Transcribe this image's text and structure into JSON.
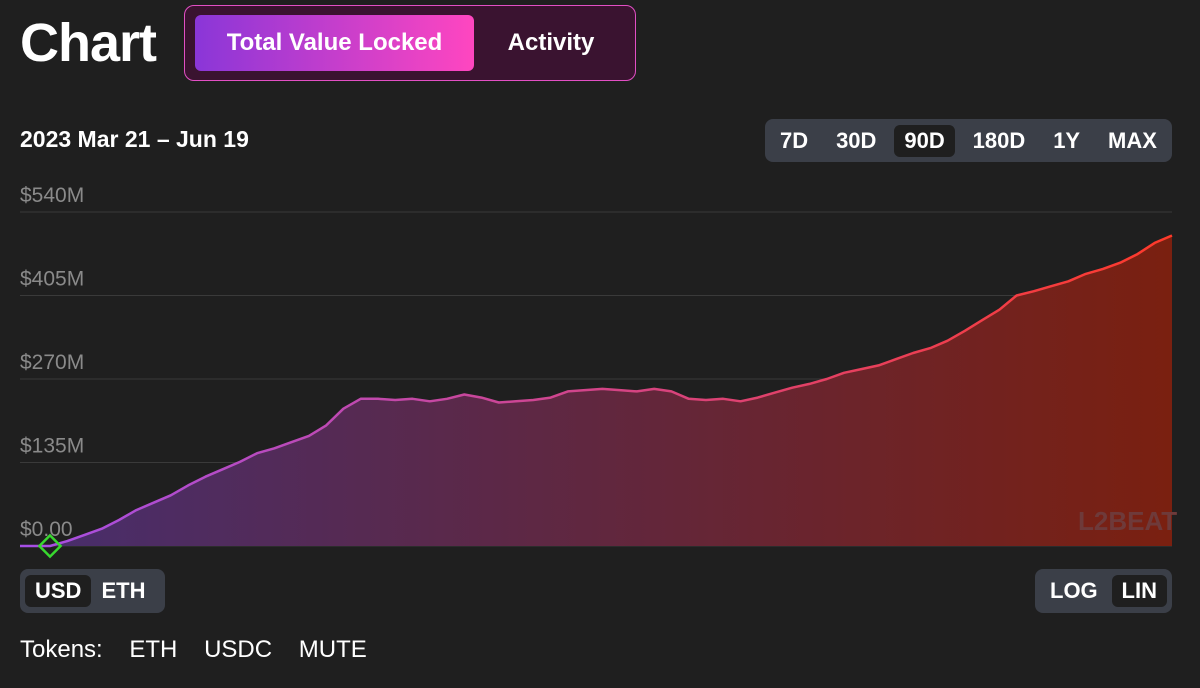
{
  "page": {
    "title": "Chart"
  },
  "tabs": [
    {
      "label": "Total Value Locked",
      "active": true
    },
    {
      "label": "Activity",
      "active": false
    }
  ],
  "range_label": "2023 Mar 21 – Jun 19",
  "periods": [
    "7D",
    "30D",
    "90D",
    "180D",
    "1Y",
    "MAX"
  ],
  "active_period": "90D",
  "units": [
    "USD",
    "ETH"
  ],
  "active_unit": "USD",
  "scales": [
    "LOG",
    "LIN"
  ],
  "active_scale": "LIN",
  "watermark": "L2BEAT",
  "tokens": {
    "label": "Tokens:",
    "items": [
      "ETH",
      "USDC",
      "MUTE"
    ]
  },
  "colors": {
    "background": "#1f1f1f",
    "line_start": "#a64fe6",
    "line_end": "#ff3a2a",
    "fill_start": "#472e6e",
    "fill_end": "#7a2010",
    "start_marker": "#38d82f",
    "grid": "#3a3a3a"
  },
  "chart_data": {
    "type": "area",
    "y_ticks": [
      "$0.00",
      "$135M",
      "$270M",
      "$405M",
      "$540M"
    ],
    "ylim": [
      0,
      540
    ],
    "y_unit": "USD millions",
    "x_range": [
      "2023-03-21",
      "2023-06-19"
    ],
    "grid": true,
    "series": [
      {
        "values": [
          0,
          8,
          18,
          28,
          42,
          58,
          70,
          82,
          98,
          112,
          124,
          136,
          150,
          158,
          168,
          178,
          195,
          222,
          238,
          238,
          236,
          238,
          234,
          238,
          245,
          240,
          232,
          234,
          236,
          240,
          250,
          252,
          254,
          252,
          250,
          254,
          250,
          238,
          236,
          238,
          234,
          240,
          248,
          256,
          262,
          270,
          280,
          286,
          292,
          302,
          312,
          320,
          332,
          348,
          365,
          382,
          405,
          412,
          420,
          428,
          440,
          448,
          458,
          472,
          490,
          502
        ]
      }
    ]
  }
}
